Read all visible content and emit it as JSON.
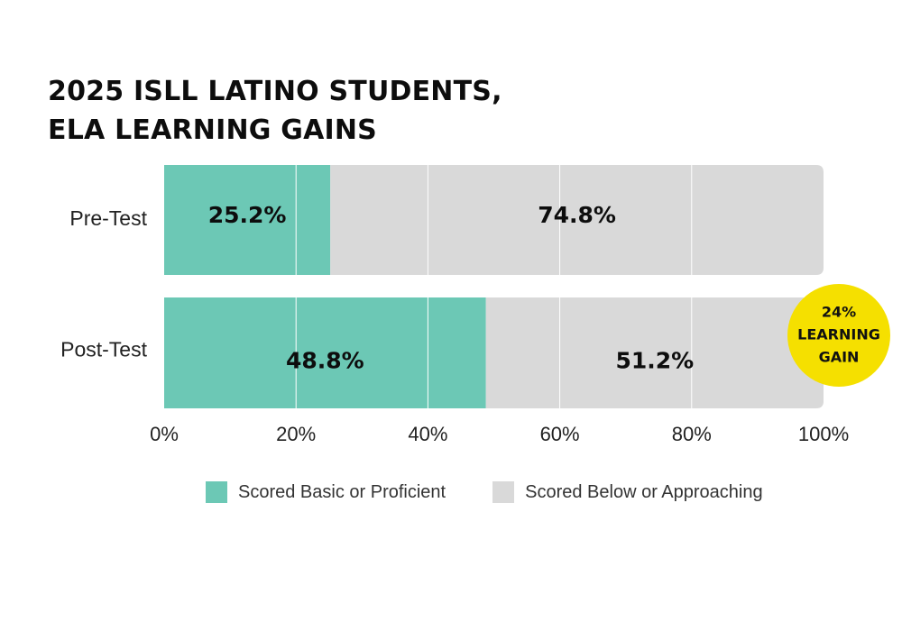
{
  "title_lines": [
    "2025 ISLL LATINO STUDENTS,",
    "ELA LEARNING GAINS"
  ],
  "colors": {
    "proficient": "#6cc8b5",
    "below": "#d9d9d9",
    "badge": "#f5e000",
    "gridline": "#ffffff"
  },
  "chart_data": {
    "type": "bar",
    "orientation": "horizontal",
    "stacked": true,
    "title": "2025 ISLL LATINO STUDENTS, ELA LEARNING GAINS",
    "categories": [
      "Pre-Test",
      "Post-Test"
    ],
    "series": [
      {
        "name": "Scored Basic or Proficient",
        "values": [
          25.2,
          48.8
        ],
        "labels": [
          "25.2%",
          "48.8%"
        ]
      },
      {
        "name": "Scored Below or Approaching",
        "values": [
          74.8,
          51.2
        ],
        "labels": [
          "74.8%",
          "51.2%"
        ]
      }
    ],
    "xlim": [
      0,
      100
    ],
    "xticks": [
      0,
      20,
      40,
      60,
      80,
      100
    ],
    "xtick_labels": [
      "0%",
      "20%",
      "40%",
      "60%",
      "80%",
      "100%"
    ],
    "xlabel": "",
    "ylabel": "",
    "grid": true,
    "legend_position": "bottom",
    "annotation": {
      "lines": [
        "24%",
        "LEARNING",
        "GAIN"
      ],
      "attached_to": "Post-Test"
    }
  },
  "legend": {
    "items": [
      {
        "label": "Scored Basic or Proficient"
      },
      {
        "label": "Scored Below or Approaching"
      }
    ]
  }
}
